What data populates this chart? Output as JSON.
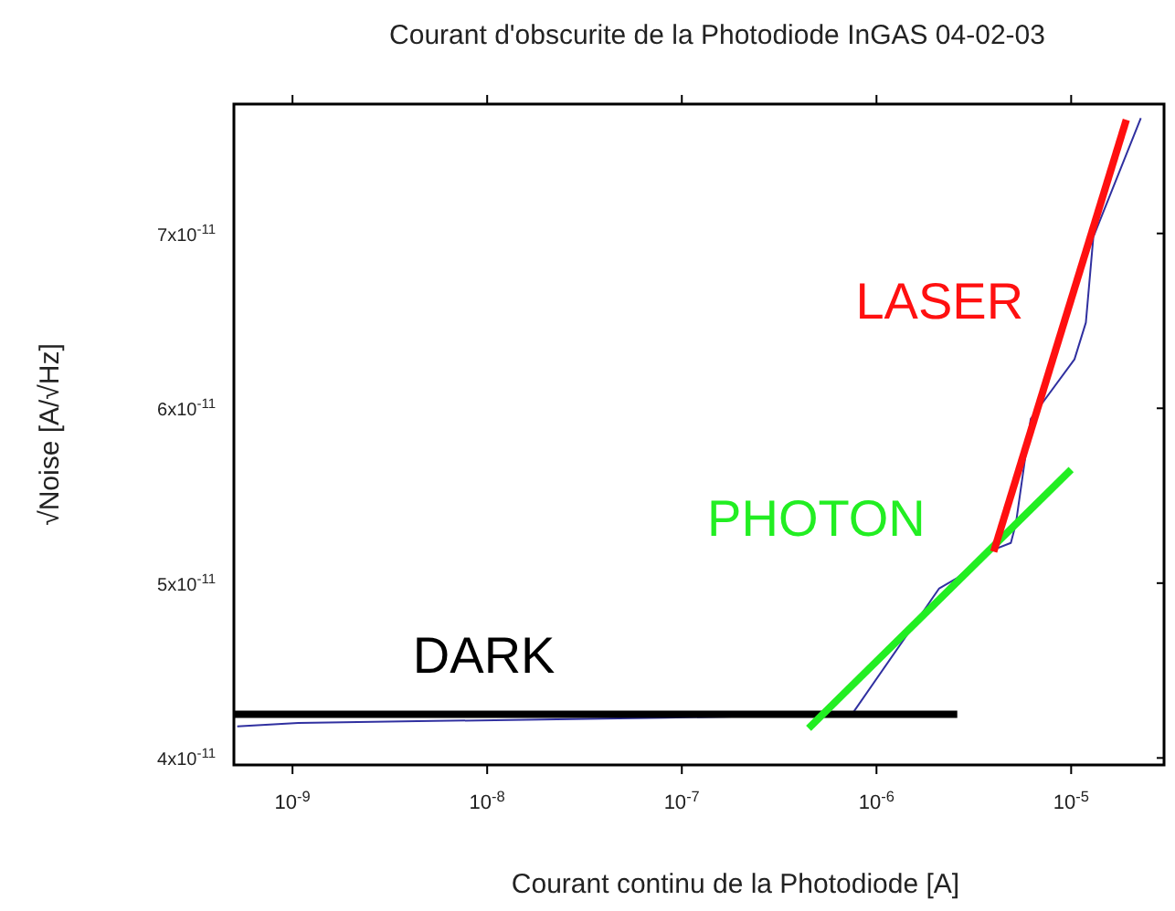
{
  "chart_data": {
    "type": "line",
    "title": "Courant d'obscurite de la Photodiode InGAS 04-02-03",
    "xlabel": "Courant continu de la Photodiode [A]",
    "ylabel": "√Noise [A/√Hz]",
    "log": "x",
    "grid": false,
    "marker": "none",
    "xlim": [
      5e-10,
      3e-05
    ],
    "xticks": [
      {
        "value": 1e-09,
        "label": "10$^{-9}$"
      },
      {
        "value": 1e-08,
        "label": "10$^{-8}$"
      },
      {
        "value": 1e-07,
        "label": "10$^{-7}$"
      },
      {
        "value": 1e-06,
        "label": "10$^{-6}$"
      },
      {
        "value": 1e-05,
        "label": "10$^{-5}$"
      }
    ],
    "ylim": [
      3.96e-11,
      7.74e-11
    ],
    "yticks": [
      {
        "value": 4e-11,
        "label": "4x10$^{-11}$"
      },
      {
        "value": 5e-11,
        "label": "5x10$^{-11}$"
      },
      {
        "value": 6e-11,
        "label": "6x10$^{-11}$"
      },
      {
        "value": 7e-11,
        "label": "7x10$^{-11}$"
      }
    ],
    "series": [
      {
        "color": "#3030a0",
        "x": [
          5.2e-10,
          1.07e-09,
          4.4e-09,
          1.9e-08,
          8.2e-08,
          7.4e-07,
          7.7e-07,
          2.1e-06,
          2.6e-06,
          3.76e-06,
          4.9e-06,
          5.2e-06,
          6.2e-06,
          1.04e-05,
          1.19e-05,
          1.3e-05,
          2.28e-05
        ],
        "values": [
          4.18e-11,
          4.2e-11,
          4.21e-11,
          4.22e-11,
          4.23e-11,
          4.25e-11,
          4.27e-11,
          4.97e-11,
          5.03e-11,
          5.18e-11,
          5.23e-11,
          5.34e-11,
          5.94e-11,
          6.28e-11,
          6.49e-11,
          6.98e-11,
          7.66e-11
        ]
      },
      {
        "name": "DARK",
        "color": "#000000",
        "x": [
          5e-10,
          2.6e-06
        ],
        "values": [
          4.25e-11,
          4.25e-11
        ]
      },
      {
        "name": "PHOTON",
        "color": "#22ee22",
        "x": [
          4.48e-07,
          1e-05
        ],
        "values": [
          4.17e-11,
          5.65e-11
        ]
      },
      {
        "name": "LASER",
        "color": "#ff1010",
        "x": [
          4e-06,
          1.92e-05
        ],
        "values": [
          5.18e-11,
          7.65e-11
        ]
      }
    ]
  }
}
